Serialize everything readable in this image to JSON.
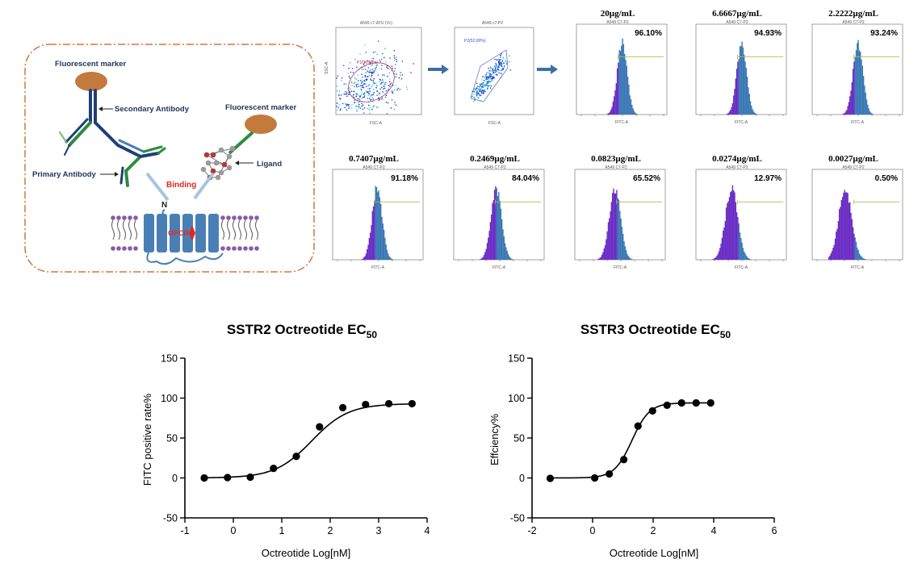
{
  "schematic": {
    "labels": {
      "fluorescent_marker_left": "Fluorescent marker",
      "secondary_antibody": "Secondary Antibody",
      "fluorescent_marker_right": "Fluorescent marker",
      "primary_antibody": "Primary Antibody",
      "ligand": "Ligand",
      "binding": "Binding",
      "n_terminus": "N",
      "gpcr": "GPCR"
    },
    "colors": {
      "border": "#d4773a",
      "marker": "#c47a3c",
      "antibody_blue": "#1f3f78",
      "antibody_green": "#2e8b3e",
      "membrane": "#4a7fb6",
      "binding": "#e0281f",
      "arrow": "#a6c4e0"
    }
  },
  "flow": {
    "scatter_plots": [
      {
        "title": "A549 c7-ATU (Vc)",
        "gate_label": "P1(36.68%)"
      },
      {
        "title": "A549 c7-P2",
        "gate_label": "P2(52.00%)"
      }
    ],
    "panels": [
      {
        "concentration": "20µg/mL",
        "subtitle": "A549 C7-P2",
        "percent": "96.10%",
        "x_label": "FITC-A",
        "shift": 0.0
      },
      {
        "concentration": "6.6667µg/mL",
        "subtitle": "A549 C7-P2",
        "percent": "94.93%",
        "x_label": "FITC-A",
        "shift": 0.0
      },
      {
        "concentration": "2.2222µg/mL",
        "subtitle": "A549 C7-P2",
        "percent": "93.24%",
        "x_label": "FITC-A",
        "shift": 0.0
      },
      {
        "concentration": "0.7407µg/mL",
        "subtitle": "A549 C7-P2",
        "percent": "91.18%",
        "x_label": "FITC-A",
        "shift": 0.1
      },
      {
        "concentration": "0.2469µg/mL",
        "subtitle": "A549 C7-P2",
        "percent": "84.04%",
        "x_label": "FITC-A",
        "shift": 0.25
      },
      {
        "concentration": "0.0823µg/mL",
        "subtitle": "A549 C7-P2",
        "percent": "65.52%",
        "x_label": "FITC-A",
        "shift": 0.45
      },
      {
        "concentration": "0.0274µg/mL",
        "subtitle": "A549 C7-P2",
        "percent": "12.97%",
        "x_label": "FITC-A",
        "shift": 0.8
      },
      {
        "concentration": "0.0027µg/mL",
        "subtitle": "A549 C7-P2",
        "percent": "0.50%",
        "x_label": "FITC-A",
        "shift": 1.0
      }
    ],
    "colors": {
      "histogram": "#3b78b5",
      "negative": "#6a2cc4",
      "gate": "#b7b84a"
    }
  },
  "chart_data": [
    {
      "type": "scatter",
      "title": "SSTR2 Octreotide EC",
      "title_sub": "50",
      "xlabel": "Octreotide Log[nM]",
      "ylabel": "FITC positive rate%",
      "xlim": [
        -1,
        4
      ],
      "ylim": [
        -50,
        150
      ],
      "xticks": [
        -1,
        0,
        1,
        2,
        3,
        4
      ],
      "yticks": [
        -50,
        0,
        50,
        100,
        150
      ],
      "x": [
        -0.6,
        -0.12,
        0.35,
        0.83,
        1.3,
        1.78,
        2.26,
        2.73,
        3.21,
        3.69
      ],
      "y": [
        0,
        0.5,
        1,
        12,
        27,
        64,
        88,
        92,
        93,
        93
      ],
      "fit": {
        "bottom": 0,
        "top": 93,
        "logEC50": 1.62,
        "hill": 1.15
      }
    },
    {
      "type": "scatter",
      "title": "SSTR3 Octreotide EC",
      "title_sub": "50",
      "xlabel": "Octreotide Log[nM]",
      "ylabel": "Effciency%",
      "xlim": [
        -2,
        6
      ],
      "ylim": [
        -50,
        150
      ],
      "xticks": [
        -2,
        0,
        2,
        4,
        6
      ],
      "yticks": [
        -50,
        0,
        50,
        100,
        150
      ],
      "x": [
        -1.4,
        0.07,
        0.55,
        1.03,
        1.5,
        1.98,
        2.46,
        2.94,
        3.42,
        3.9
      ],
      "y": [
        -0.5,
        0,
        5,
        23,
        65,
        84,
        91,
        94,
        94,
        94
      ],
      "fit": {
        "bottom": 0,
        "top": 94,
        "logEC50": 1.3,
        "hill": 1.5
      }
    }
  ]
}
